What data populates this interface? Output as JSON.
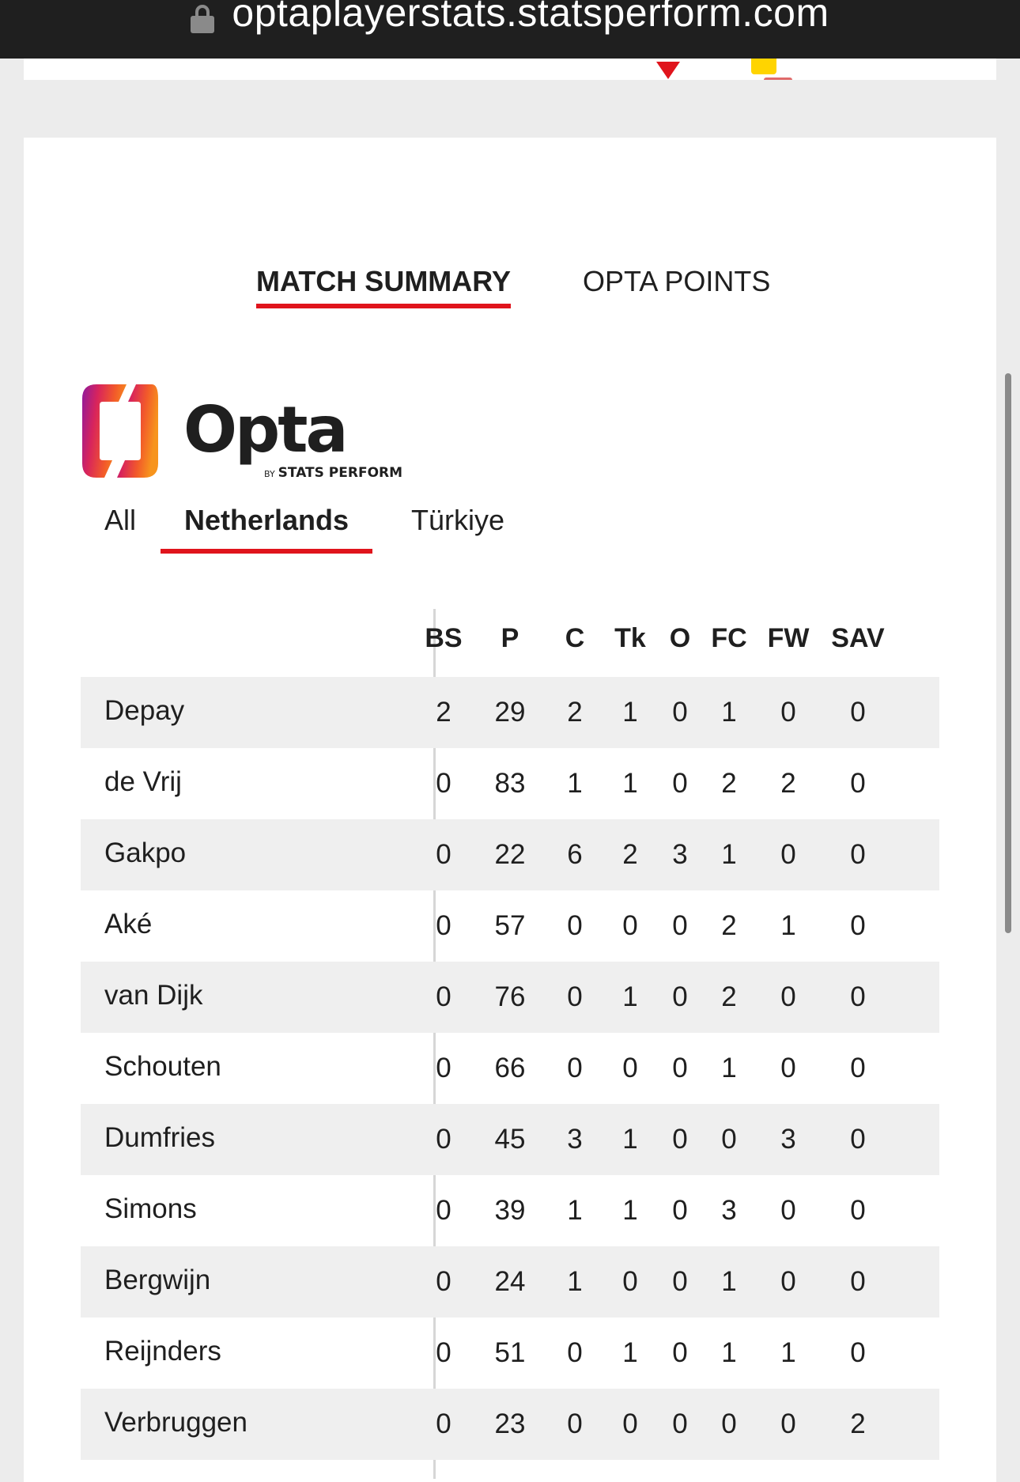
{
  "browser": {
    "url": "optaplayerstats.statsperform.com",
    "lock_icon": "lock-icon"
  },
  "top_card": {
    "icons": [
      "red-marker-icon",
      "yellow-card-icon",
      "red-card-icon"
    ],
    "colors": {
      "red": "#e0141c",
      "yellow": "#ffd400"
    }
  },
  "tabs": {
    "match_summary": "MATCH SUMMARY",
    "opta_points": "OPTA POINTS",
    "active": "match_summary"
  },
  "logo": {
    "name": "Opta",
    "by": "BY",
    "tagline": "STATS PERFORM"
  },
  "team_tabs": {
    "all": "All",
    "netherlands": "Netherlands",
    "turkiye": "Türkiye",
    "active": "netherlands"
  },
  "table": {
    "columns": [
      "BS",
      "P",
      "C",
      "Tk",
      "O",
      "FC",
      "FW",
      "SAV"
    ],
    "rows": [
      {
        "player": "Depay",
        "stats": [
          "2",
          "29",
          "2",
          "1",
          "0",
          "1",
          "0",
          "0"
        ]
      },
      {
        "player": "de Vrij",
        "stats": [
          "0",
          "83",
          "1",
          "1",
          "0",
          "2",
          "2",
          "0"
        ]
      },
      {
        "player": "Gakpo",
        "stats": [
          "0",
          "22",
          "6",
          "2",
          "3",
          "1",
          "0",
          "0"
        ]
      },
      {
        "player": "Aké",
        "stats": [
          "0",
          "57",
          "0",
          "0",
          "0",
          "2",
          "1",
          "0"
        ]
      },
      {
        "player": "van Dijk",
        "stats": [
          "0",
          "76",
          "0",
          "1",
          "0",
          "2",
          "0",
          "0"
        ]
      },
      {
        "player": "Schouten",
        "stats": [
          "0",
          "66",
          "0",
          "0",
          "0",
          "1",
          "0",
          "0"
        ]
      },
      {
        "player": "Dumfries",
        "stats": [
          "0",
          "45",
          "3",
          "1",
          "0",
          "0",
          "3",
          "0"
        ]
      },
      {
        "player": "Simons",
        "stats": [
          "0",
          "39",
          "1",
          "1",
          "0",
          "3",
          "0",
          "0"
        ]
      },
      {
        "player": "Bergwijn",
        "stats": [
          "0",
          "24",
          "1",
          "0",
          "0",
          "1",
          "0",
          "0"
        ]
      },
      {
        "player": "Reijnders",
        "stats": [
          "0",
          "51",
          "0",
          "1",
          "0",
          "1",
          "1",
          "0"
        ]
      },
      {
        "player": "Verbruggen",
        "stats": [
          "0",
          "23",
          "0",
          "0",
          "0",
          "0",
          "0",
          "2"
        ]
      }
    ]
  },
  "accent_color": "#e0141c"
}
